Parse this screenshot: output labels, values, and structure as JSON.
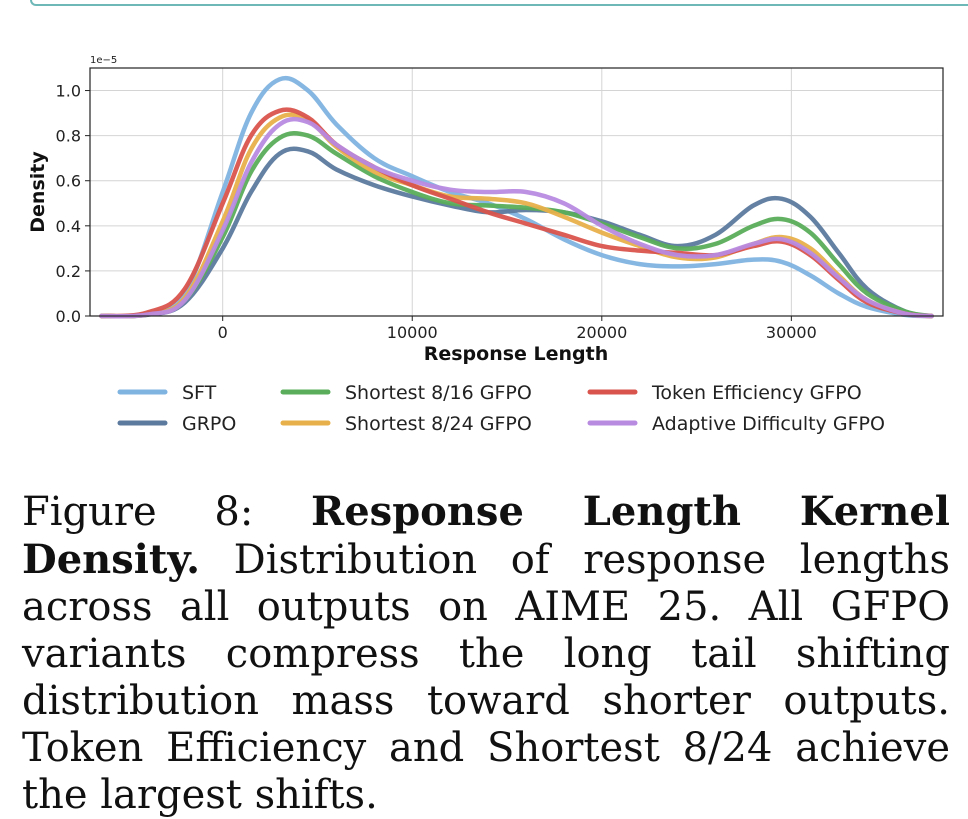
{
  "chart_data": {
    "type": "line",
    "xlabel": "Response Length",
    "ylabel": "Density",
    "exponent_label": "1e−5",
    "xlim": [
      -7000,
      38000
    ],
    "ylim": [
      0,
      1.1
    ],
    "xticks": [
      0,
      10000,
      20000,
      30000
    ],
    "xtick_labels": [
      "0",
      "10000",
      "20000",
      "30000"
    ],
    "yticks": [
      0,
      0.2,
      0.4,
      0.6,
      0.8,
      1.0
    ],
    "ytick_labels": [
      "0.0",
      "0.2",
      "0.4",
      "0.6",
      "0.8",
      "1.0"
    ],
    "grid": true,
    "legend_position": "bottom",
    "series": [
      {
        "name": "SFT",
        "color": "#7fb3e0",
        "x": [
          -6400,
          -4000,
          -2000,
          0,
          1500,
          3000,
          4500,
          6000,
          8000,
          10000,
          12000,
          14000,
          16000,
          18000,
          20000,
          22000,
          24000,
          26000,
          28000,
          29500,
          31000,
          32500,
          34000,
          36000,
          37400
        ],
        "y": [
          0.0,
          0.01,
          0.1,
          0.55,
          0.9,
          1.05,
          1.0,
          0.85,
          0.7,
          0.62,
          0.55,
          0.5,
          0.43,
          0.34,
          0.27,
          0.23,
          0.22,
          0.23,
          0.25,
          0.24,
          0.18,
          0.1,
          0.04,
          0.005,
          0.0
        ]
      },
      {
        "name": "GRPO",
        "color": "#5c7a9e",
        "x": [
          -6400,
          -4000,
          -2000,
          0,
          1500,
          3000,
          4500,
          6000,
          8000,
          10000,
          12000,
          14000,
          16000,
          18000,
          20000,
          22000,
          24000,
          26000,
          28000,
          29500,
          31000,
          32500,
          34000,
          36000,
          37400
        ],
        "y": [
          0.0,
          0.005,
          0.06,
          0.3,
          0.55,
          0.72,
          0.73,
          0.65,
          0.58,
          0.53,
          0.49,
          0.46,
          0.47,
          0.46,
          0.42,
          0.36,
          0.31,
          0.36,
          0.49,
          0.52,
          0.44,
          0.28,
          0.12,
          0.02,
          0.0
        ]
      },
      {
        "name": "Shortest 8/16 GFPO",
        "color": "#5aad5a",
        "x": [
          -6400,
          -4000,
          -2000,
          0,
          1500,
          3000,
          4500,
          6000,
          8000,
          10000,
          12000,
          14000,
          16000,
          18000,
          20000,
          22000,
          24000,
          26000,
          28000,
          29500,
          31000,
          32500,
          34000,
          36000,
          37400
        ],
        "y": [
          0.0,
          0.006,
          0.07,
          0.35,
          0.64,
          0.79,
          0.8,
          0.72,
          0.62,
          0.55,
          0.5,
          0.49,
          0.48,
          0.46,
          0.41,
          0.35,
          0.3,
          0.32,
          0.4,
          0.43,
          0.37,
          0.23,
          0.1,
          0.02,
          0.0
        ]
      },
      {
        "name": "Shortest 8/24 GFPO",
        "color": "#e8b04a",
        "x": [
          -6400,
          -4000,
          -2000,
          0,
          1500,
          3000,
          4500,
          6000,
          8000,
          10000,
          12000,
          14000,
          16000,
          18000,
          20000,
          22000,
          24000,
          26000,
          28000,
          29500,
          31000,
          32500,
          34000,
          36000,
          37400
        ],
        "y": [
          0.0,
          0.007,
          0.08,
          0.42,
          0.74,
          0.88,
          0.87,
          0.75,
          0.64,
          0.58,
          0.53,
          0.52,
          0.5,
          0.44,
          0.37,
          0.31,
          0.26,
          0.26,
          0.32,
          0.35,
          0.3,
          0.18,
          0.07,
          0.01,
          0.0
        ]
      },
      {
        "name": "Token Efficiency GFPO",
        "color": "#d9544d",
        "x": [
          -6400,
          -4000,
          -2000,
          0,
          1500,
          3000,
          4500,
          6000,
          8000,
          10000,
          12000,
          14000,
          16000,
          18000,
          20000,
          22000,
          24000,
          26000,
          28000,
          29500,
          31000,
          32500,
          34000,
          36000,
          37400
        ],
        "y": [
          0.0,
          0.015,
          0.12,
          0.5,
          0.8,
          0.91,
          0.88,
          0.76,
          0.66,
          0.58,
          0.52,
          0.46,
          0.41,
          0.36,
          0.31,
          0.29,
          0.28,
          0.27,
          0.31,
          0.33,
          0.27,
          0.16,
          0.06,
          0.01,
          0.0
        ]
      },
      {
        "name": "Adaptive Difficulty GFPO",
        "color": "#b88ae0",
        "x": [
          -6400,
          -4000,
          -2000,
          0,
          1500,
          3000,
          4500,
          6000,
          8000,
          10000,
          12000,
          14000,
          16000,
          18000,
          20000,
          22000,
          24000,
          26000,
          28000,
          29500,
          31000,
          32500,
          34000,
          36000,
          37400
        ],
        "y": [
          0.0,
          0.006,
          0.07,
          0.38,
          0.68,
          0.85,
          0.86,
          0.76,
          0.66,
          0.6,
          0.56,
          0.55,
          0.55,
          0.5,
          0.4,
          0.32,
          0.27,
          0.27,
          0.32,
          0.34,
          0.28,
          0.17,
          0.07,
          0.01,
          0.0
        ]
      }
    ],
    "legend_rows": [
      [
        "SFT",
        "Shortest 8/16 GFPO",
        "Token Efficiency GFPO"
      ],
      [
        "GRPO",
        "Shortest 8/24 GFPO",
        "Adaptive Difficulty GFPO"
      ]
    ]
  },
  "caption": {
    "prefix": "Figure 8: ",
    "bold": "Response Length Kernel Density.",
    "body": " Distribution of response lengths across all outputs on AIME 25. All GFPO variants compress the long tail shifting distribution mass toward shorter outputs. Token Efficiency and Shortest 8/24 achieve the largest shifts."
  }
}
